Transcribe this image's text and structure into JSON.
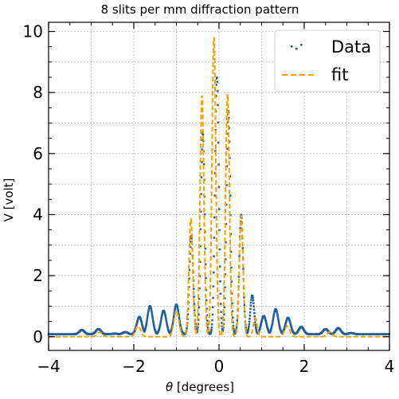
{
  "chart_data": {
    "type": "scatter",
    "title": "8 slits per mm diffraction pattern",
    "xlabel_symbol": "θ",
    "xlabel_rest": " [degrees]",
    "ylabel": "V [volt]",
    "xlim": [
      -4,
      4
    ],
    "ylim": [
      -0.45,
      10.3
    ],
    "x_ticks": [
      -4,
      -2,
      0,
      2,
      4
    ],
    "x_tick_labels": [
      "−4",
      "−2",
      "0",
      "2",
      "4"
    ],
    "y_ticks": [
      0,
      2,
      4,
      6,
      8,
      10
    ],
    "y_tick_labels": [
      "0",
      "2",
      "4",
      "6",
      "8",
      "10"
    ],
    "grid": true,
    "legend_position": "top-right",
    "legend": [
      "Data",
      "fit"
    ],
    "series": [
      {
        "name": "Data",
        "style": "dots",
        "color": "#1f5fa0",
        "peaks": [
          {
            "x": -3.22,
            "y": 0.22
          },
          {
            "x": -2.83,
            "y": 0.25
          },
          {
            "x": -2.45,
            "y": 0.1
          },
          {
            "x": -2.2,
            "y": 0.15
          },
          {
            "x": -1.87,
            "y": 0.65
          },
          {
            "x": -1.62,
            "y": 1.0
          },
          {
            "x": -1.3,
            "y": 0.85
          },
          {
            "x": -1.0,
            "y": 1.05
          },
          {
            "x": -0.65,
            "y": 3.3
          },
          {
            "x": -0.38,
            "y": 6.7
          },
          {
            "x": -0.05,
            "y": 8.5
          },
          {
            "x": 0.22,
            "y": 7.4
          },
          {
            "x": 0.52,
            "y": 4.0
          },
          {
            "x": 0.78,
            "y": 1.35
          },
          {
            "x": 1.05,
            "y": 0.68
          },
          {
            "x": 1.33,
            "y": 0.9
          },
          {
            "x": 1.62,
            "y": 0.62
          },
          {
            "x": 1.93,
            "y": 0.32
          },
          {
            "x": 2.5,
            "y": 0.25
          },
          {
            "x": 2.8,
            "y": 0.28
          },
          {
            "x": 3.1,
            "y": 0.12
          }
        ],
        "baseline": 0.08
      },
      {
        "name": "fit",
        "style": "dashed",
        "color": "#f5a000",
        "peaks": [
          {
            "x": -2.8,
            "y": 0.15
          },
          {
            "x": -1.9,
            "y": 0.35
          },
          {
            "x": -1.0,
            "y": 0.85
          },
          {
            "x": -0.66,
            "y": 3.85
          },
          {
            "x": -0.4,
            "y": 7.9
          },
          {
            "x": -0.12,
            "y": 9.8
          },
          {
            "x": 0.2,
            "y": 7.95
          },
          {
            "x": 0.52,
            "y": 3.95
          },
          {
            "x": 0.85,
            "y": 0.6
          },
          {
            "x": 1.6,
            "y": 0.35
          },
          {
            "x": 2.6,
            "y": 0.15
          }
        ],
        "baseline": 0.0
      }
    ]
  }
}
